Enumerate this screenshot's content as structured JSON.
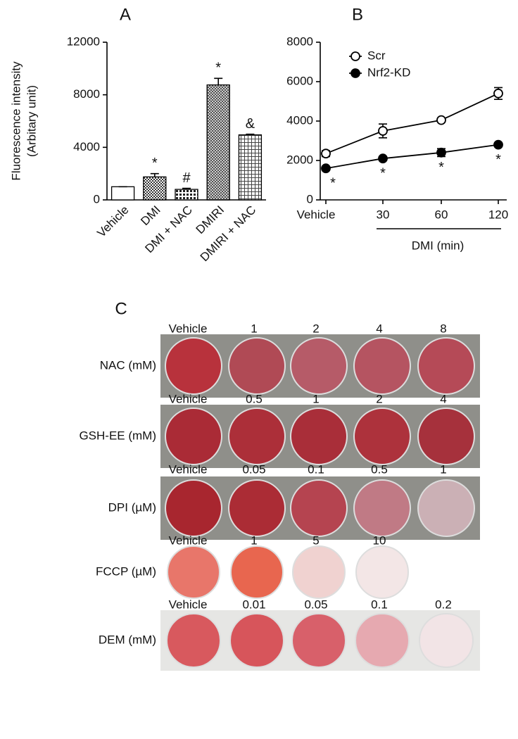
{
  "chart_data": [
    {
      "type": "bar",
      "title": "A",
      "y_label": [
        "Fluorescence intensity",
        "(Arbitary unit)"
      ],
      "categories": [
        "Vehicle",
        "DMI",
        "DMI + NAC",
        "DMIRI",
        "DMIRI + NAC"
      ],
      "values": [
        1000,
        1750,
        800,
        8750,
        4950
      ],
      "errors": [
        0,
        250,
        80,
        500,
        50
      ],
      "annotations": [
        null,
        "*",
        "#",
        "*",
        "&"
      ],
      "color": "#000000",
      "ylim": [
        0,
        12000
      ],
      "yticks": [
        0,
        4000,
        8000,
        12000
      ]
    },
    {
      "type": "line",
      "title": "B",
      "categories": [
        "Vehicle",
        "30",
        "60",
        "120"
      ],
      "x_label": "DMI (min)",
      "series": [
        {
          "name": "Scr",
          "color": "#ffffff",
          "values": [
            2350,
            3500,
            4050,
            5400
          ],
          "errors": [
            150,
            350,
            80,
            300
          ]
        },
        {
          "name": "Nrf2-KD",
          "color": "#000000",
          "values": [
            1600,
            2100,
            2400,
            2800
          ],
          "errors": [
            80,
            80,
            200,
            80
          ],
          "annotations": [
            "*",
            "*",
            "*",
            "*"
          ]
        }
      ],
      "ylim": [
        0,
        8000
      ],
      "yticks": [
        0,
        2000,
        4000,
        6000,
        8000
      ],
      "legend": "upper left"
    }
  ],
  "panel_c": {
    "label": "C",
    "rows": [
      {
        "label": "NAC (mM)",
        "wells": [
          {
            "dose": "Vehicle",
            "color": "#b8323c"
          },
          {
            "dose": "1",
            "color": "#b04a55"
          },
          {
            "dose": "2",
            "color": "#b65b68"
          },
          {
            "dose": "4",
            "color": "#b55461"
          },
          {
            "dose": "8",
            "color": "#b54a57"
          }
        ]
      },
      {
        "label": "GSH-EE (mM)",
        "wells": [
          {
            "dose": "Vehicle",
            "color": "#aa2b36"
          },
          {
            "dose": "0.5",
            "color": "#ac2f39"
          },
          {
            "dose": "1",
            "color": "#a92e39"
          },
          {
            "dose": "2",
            "color": "#ad323c"
          },
          {
            "dose": "4",
            "color": "#a6313c"
          }
        ]
      },
      {
        "label": "DPI (µM)",
        "wells": [
          {
            "dose": "Vehicle",
            "color": "#a8262f"
          },
          {
            "dose": "0.05",
            "color": "#ab2c35"
          },
          {
            "dose": "0.1",
            "color": "#b54450"
          },
          {
            "dose": "0.5",
            "color": "#c07a85"
          },
          {
            "dose": "1",
            "color": "#cbb0b5"
          }
        ]
      },
      {
        "label": "FCCP (µM)",
        "wells": [
          {
            "dose": "Vehicle",
            "color": "#e8766a"
          },
          {
            "dose": "1",
            "color": "#e8664f"
          },
          {
            "dose": "5",
            "color": "#f0d2d0"
          },
          {
            "dose": "10",
            "color": "#f3e6e6"
          }
        ]
      },
      {
        "label": "DEM (mM)",
        "wells": [
          {
            "dose": "Vehicle",
            "color": "#d8595e"
          },
          {
            "dose": "0.01",
            "color": "#d7555b"
          },
          {
            "dose": "0.05",
            "color": "#d8606a"
          },
          {
            "dose": "0.1",
            "color": "#e6a9b0"
          },
          {
            "dose": "0.2",
            "color": "#f2e4e6"
          }
        ]
      }
    ]
  }
}
